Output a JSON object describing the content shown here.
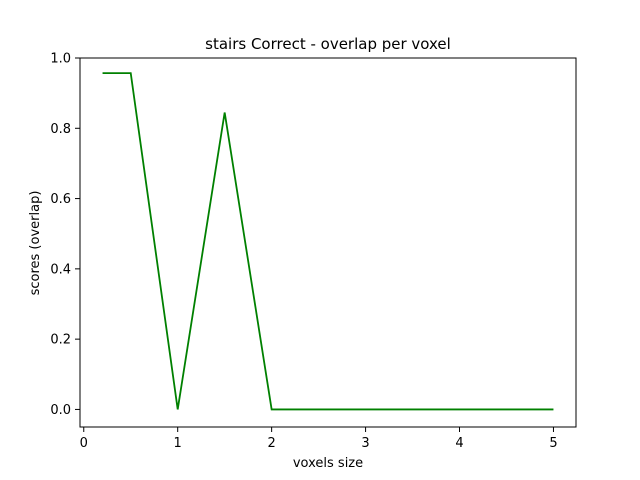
{
  "chart_data": {
    "type": "line",
    "title": "stairs Correct - overlap per voxel",
    "xlabel": "voxels size",
    "ylabel": "scores (overlap)",
    "xlim": [
      -0.04,
      5.24
    ],
    "ylim": [
      -0.05,
      1.0
    ],
    "xticks": [
      0,
      1,
      2,
      3,
      4,
      5
    ],
    "xtick_labels": [
      "0",
      "1",
      "2",
      "3",
      "4",
      "5"
    ],
    "yticks": [
      0.0,
      0.2,
      0.4,
      0.6,
      0.8,
      1.0
    ],
    "ytick_labels": [
      "0.0",
      "0.2",
      "0.4",
      "0.6",
      "0.8",
      "1.0"
    ],
    "grid": false,
    "series": [
      {
        "color": "#008000",
        "x": [
          0.2,
          0.5,
          1.0,
          1.5,
          2.0,
          2.5,
          3.0,
          3.5,
          4.0,
          4.5,
          5.0
        ],
        "y": [
          0.957,
          0.957,
          0.0,
          0.845,
          0.0,
          0.0,
          0.0,
          0.0,
          0.0,
          0.0,
          0.0
        ]
      }
    ]
  }
}
